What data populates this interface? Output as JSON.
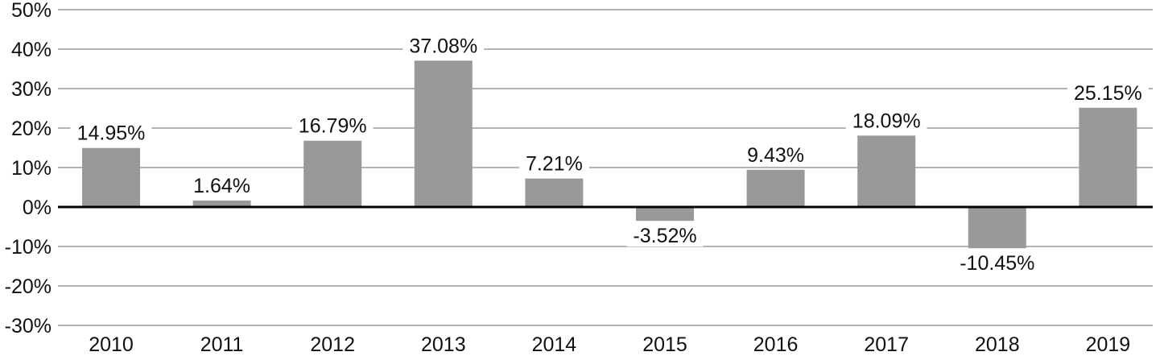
{
  "chart_data": {
    "type": "bar",
    "title": "",
    "xlabel": "",
    "ylabel": "",
    "categories": [
      "2010",
      "2011",
      "2012",
      "2013",
      "2014",
      "2015",
      "2016",
      "2017",
      "2018",
      "2019"
    ],
    "values": [
      14.95,
      1.64,
      16.79,
      37.08,
      7.21,
      -3.52,
      9.43,
      18.09,
      -10.45,
      25.15
    ],
    "value_labels": [
      "14.95%",
      "1.64%",
      "16.79%",
      "37.08%",
      "7.21%",
      "-3.52%",
      "9.43%",
      "18.09%",
      "-10.45%",
      "25.15%"
    ],
    "ylim": [
      -30,
      50
    ],
    "yticks": [
      50,
      40,
      30,
      20,
      10,
      0,
      -10,
      -20,
      -30
    ],
    "ytick_labels": [
      "50%",
      "40%",
      "30%",
      "20%",
      "10%",
      "0%",
      "-10%",
      "-20%",
      "-30%"
    ],
    "grid": true,
    "colors": {
      "bar": "#999999",
      "grid": "#b3b3b3",
      "zero_line": "#000000",
      "text": "#111111"
    }
  }
}
